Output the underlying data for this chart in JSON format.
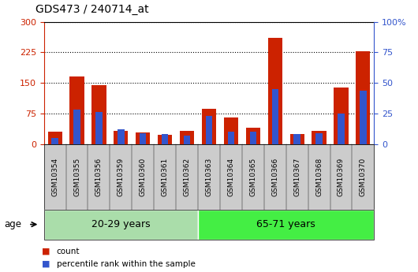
{
  "title": "GDS473 / 240714_at",
  "samples": [
    "GSM10354",
    "GSM10355",
    "GSM10356",
    "GSM10359",
    "GSM10360",
    "GSM10361",
    "GSM10362",
    "GSM10363",
    "GSM10364",
    "GSM10365",
    "GSM10366",
    "GSM10367",
    "GSM10368",
    "GSM10369",
    "GSM10370"
  ],
  "count_values": [
    30,
    165,
    145,
    33,
    28,
    22,
    32,
    87,
    65,
    40,
    260,
    25,
    33,
    138,
    227
  ],
  "percentile_values": [
    5,
    28,
    26,
    12,
    9,
    8,
    7,
    23,
    10,
    10,
    45,
    8,
    9,
    25,
    44
  ],
  "group1_label": "20-29 years",
  "group2_label": "65-71 years",
  "group1_count": 7,
  "group2_count": 8,
  "age_label": "age",
  "legend_count": "count",
  "legend_pct": "percentile rank within the sample",
  "bar_color": "#cc2200",
  "pct_color": "#3355cc",
  "group1_bg": "#aaddaa",
  "group2_bg": "#44ee44",
  "xlabel_bg": "#cccccc",
  "ylim_left": [
    0,
    300
  ],
  "ylim_right": [
    0,
    100
  ],
  "yticks_left": [
    0,
    75,
    150,
    225,
    300
  ],
  "yticks_right": [
    0,
    25,
    50,
    75,
    100
  ],
  "ytick_labels_right": [
    "0",
    "25",
    "50",
    "75",
    "100%"
  ]
}
